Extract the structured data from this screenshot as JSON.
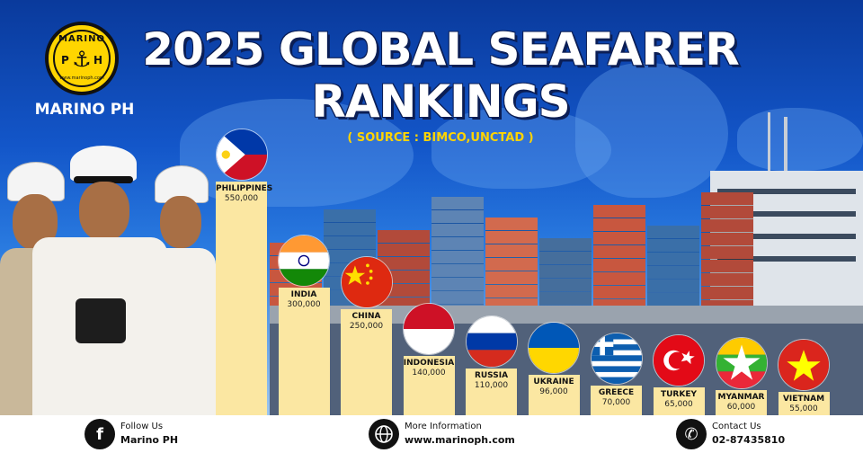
{
  "brand": {
    "name": "MARINO PH",
    "logo_word": "MARINO",
    "logo_p": "P",
    "logo_h": "H",
    "logo_url": "www.marinoph.com"
  },
  "colors": {
    "bar_fill": "#fbe7a2",
    "title_text": "#ffffff",
    "subtitle_text": "#ffd400",
    "background_blue": "#1356c9"
  },
  "chart_data": {
    "type": "bar",
    "title_line1": "2025 GLOBAL SEAFARER",
    "title_line2": "RANKINGS",
    "subtitle": "( SOURCE : BIMCO,UNCTAD )",
    "categories": [
      "PHILIPPINES",
      "INDIA",
      "CHINA",
      "INDONESIA",
      "RUSSIA",
      "UKRAINE",
      "GREECE",
      "TURKEY",
      "MYANMAR",
      "VIETNAM"
    ],
    "values": [
      550000,
      300000,
      250000,
      140000,
      110000,
      96000,
      70000,
      65000,
      60000,
      55000
    ],
    "value_labels": [
      "550,000",
      "300,000",
      "250,000",
      "140,000",
      "110,000",
      "96,000",
      "70,000",
      "65,000",
      "60,000",
      "55,000"
    ],
    "flags": [
      "philippines-flag",
      "india-flag",
      "china-flag",
      "indonesia-flag",
      "russia-flag",
      "ukraine-flag",
      "greece-flag",
      "turkey-flag",
      "myanmar-flag",
      "vietnam-flag"
    ],
    "xlabel": "",
    "ylabel": "",
    "grid": false
  },
  "footer": {
    "follow_label": "Follow Us",
    "follow_value": "Marino PH",
    "info_label": "More Information",
    "info_value": "www.marinoph.com",
    "contact_label": "Contact Us",
    "contact_value": "02-87435810",
    "icons": [
      "facebook-icon",
      "globe-icon",
      "phone-icon"
    ]
  }
}
